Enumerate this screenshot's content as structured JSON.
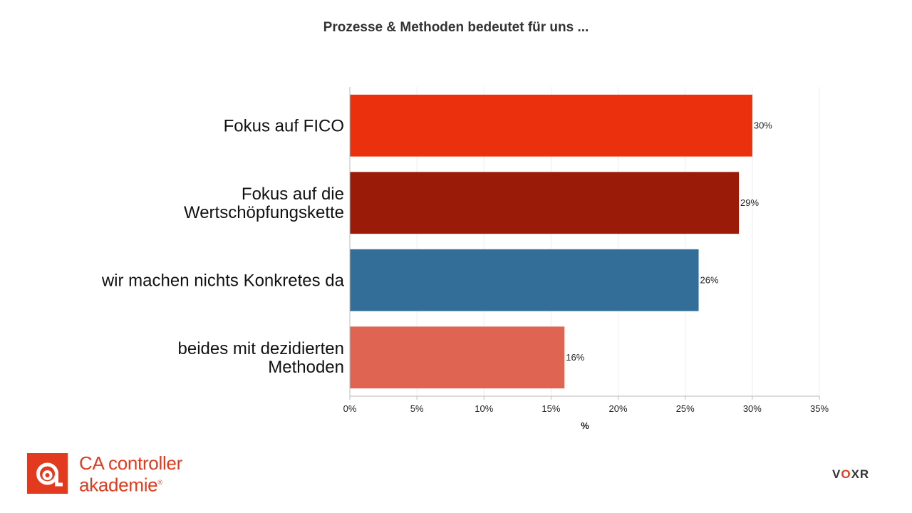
{
  "chart_data": {
    "type": "bar",
    "orientation": "horizontal",
    "title": "Prozesse & Methoden bedeutet für uns ...",
    "xlabel": "%",
    "ylabel": "",
    "categories": [
      [
        "Fokus auf FICO"
      ],
      [
        "Fokus auf die",
        "Wertschöpfungskette"
      ],
      [
        "wir machen nichts Konkretes da"
      ],
      [
        "beides mit dezidierten",
        "Methoden"
      ]
    ],
    "values": [
      30,
      29,
      26,
      16
    ],
    "value_labels": [
      "30%",
      "29%",
      "26%",
      "16%"
    ],
    "colors": [
      "#ea300c",
      "#991b08",
      "#336e99",
      "#e06452"
    ],
    "xlim": [
      0,
      35
    ],
    "xticks": [
      0,
      5,
      10,
      15,
      20,
      25,
      30,
      35
    ],
    "xtick_labels": [
      "0%",
      "5%",
      "10%",
      "15%",
      "20%",
      "25%",
      "30%",
      "35%"
    ],
    "grid": true
  },
  "branding": {
    "logo_line1": "CA controller",
    "logo_line2": "akademie",
    "logo_reg": "®",
    "voxr_v": "V",
    "voxr_o": "O",
    "voxr_xr": "XR"
  }
}
